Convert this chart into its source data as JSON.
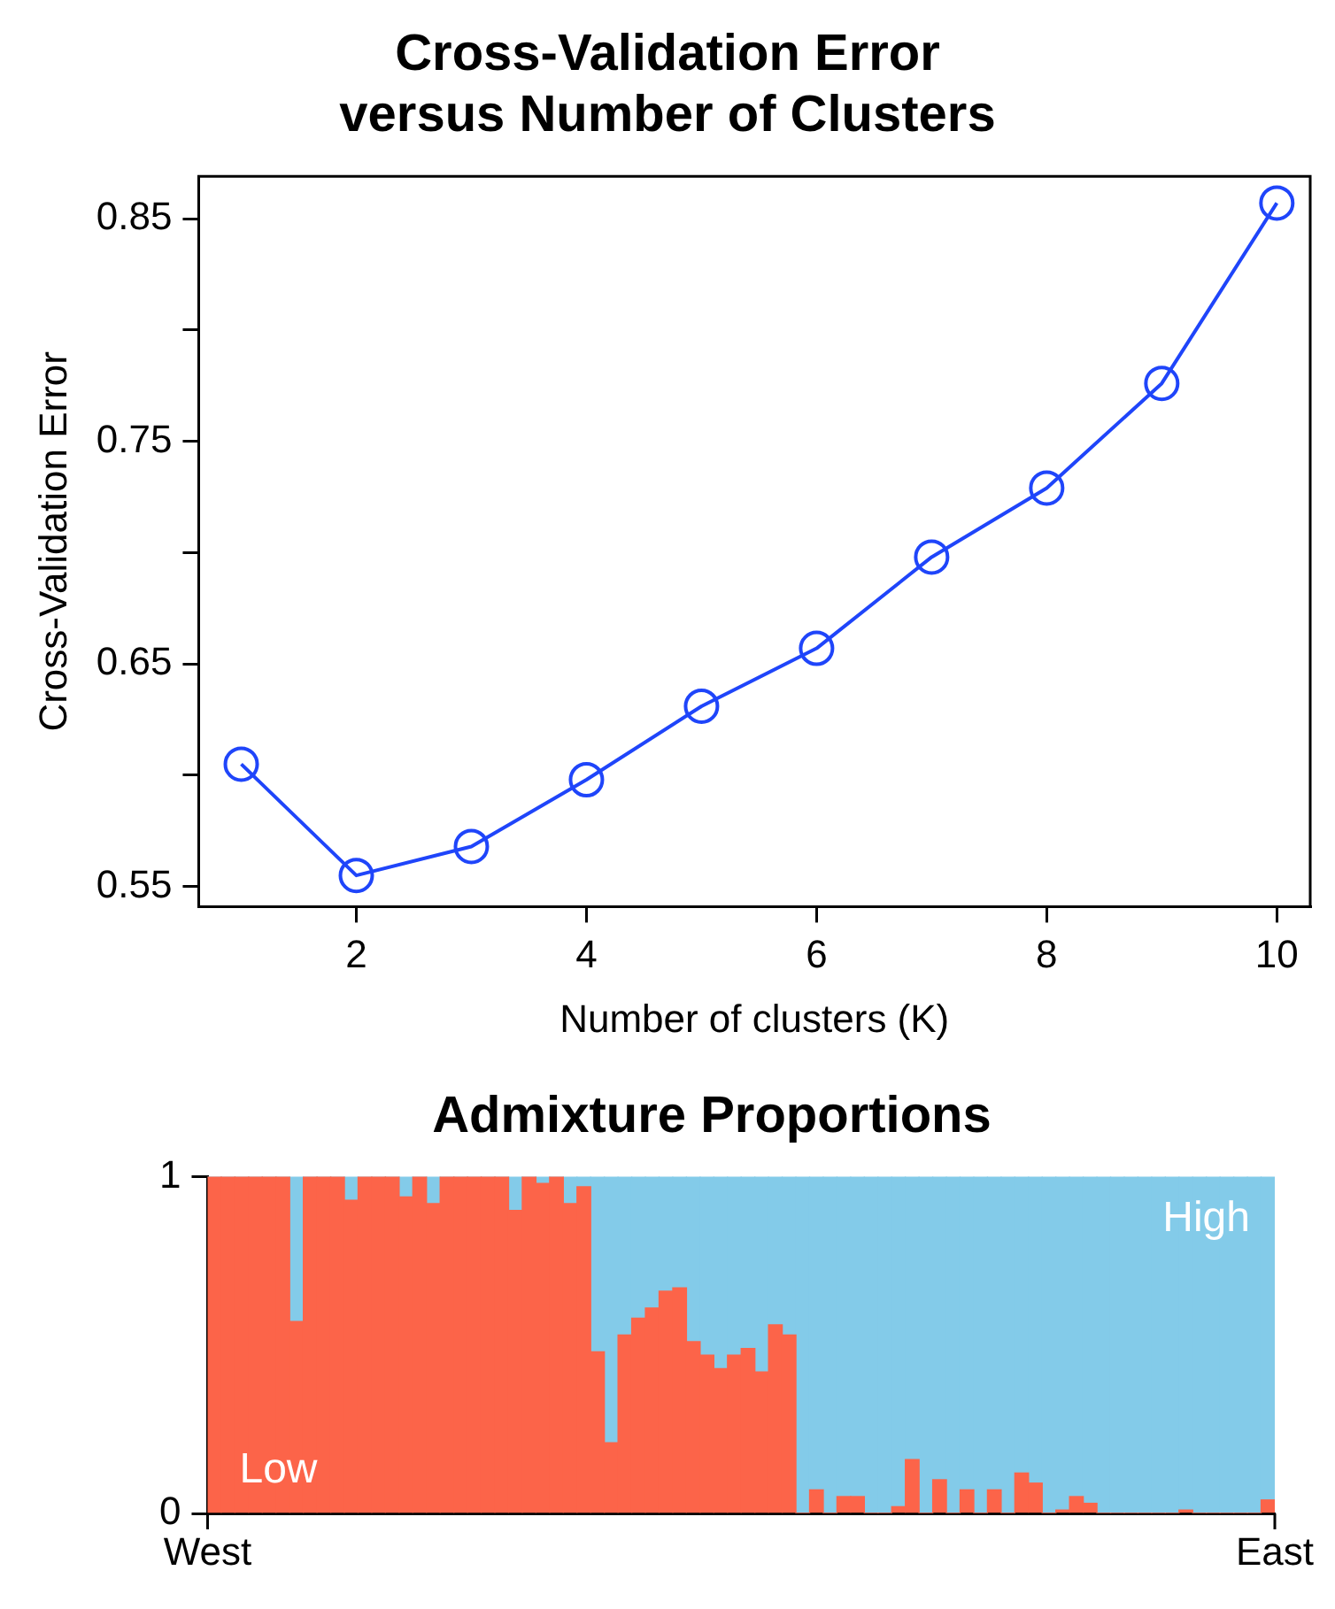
{
  "chart_data": [
    {
      "type": "line",
      "title": "Cross-Validation Error\nversus Number of Clusters",
      "xlabel": "Number of clusters (K)",
      "ylabel": "Cross-Validation Error",
      "x": [
        1,
        2,
        3,
        4,
        5,
        6,
        7,
        8,
        9,
        10
      ],
      "series": [
        {
          "color": "#1f45fa",
          "values": [
            0.605,
            0.555,
            0.568,
            0.598,
            0.631,
            0.657,
            0.698,
            0.729,
            0.776,
            0.857
          ]
        }
      ],
      "xlim": [
        0.63,
        10.29
      ],
      "xticks": [
        2,
        4,
        6,
        8,
        10
      ],
      "ylim": [
        0.541,
        0.869
      ],
      "yticks": [
        0.55,
        {
          "value": 0.6,
          "label": null
        },
        0.65,
        {
          "value": 0.7,
          "label": null
        },
        0.75,
        {
          "value": 0.8,
          "label": null
        },
        0.85
      ],
      "marker": "circle",
      "line_style": "solid",
      "legend": false,
      "grid": false
    },
    {
      "type": "bar",
      "title": "Admixture Proportions",
      "stacked": true,
      "categories": [
        null,
        null,
        null,
        null,
        null,
        null,
        null,
        null,
        null,
        null,
        null,
        null,
        null,
        null,
        null,
        null,
        null,
        null,
        null,
        null,
        null,
        null,
        null,
        null,
        null,
        null,
        null,
        null,
        null,
        null,
        null,
        null,
        null,
        null,
        null,
        null,
        null,
        null,
        null,
        null,
        null,
        null,
        null,
        null,
        null,
        null,
        null,
        null,
        null,
        null,
        null,
        null,
        null,
        null,
        null,
        null,
        null,
        null,
        null,
        null,
        null,
        null,
        null,
        null,
        null,
        null,
        null,
        null,
        null,
        null,
        null,
        null,
        null,
        null,
        null,
        null,
        null,
        null
      ],
      "series": [
        {
          "name": "Low",
          "color": "#fc6449",
          "values": [
            1,
            1,
            1,
            1,
            1,
            1,
            0.57,
            1,
            1,
            1,
            0.93,
            1,
            1,
            1,
            0.94,
            1,
            0.92,
            1,
            1,
            1,
            1,
            1,
            0.9,
            1,
            0.98,
            1,
            0.92,
            0.97,
            0.48,
            0.21,
            0.53,
            0.58,
            0.61,
            0.66,
            0.67,
            0.51,
            0.47,
            0.43,
            0.47,
            0.49,
            0.42,
            0.56,
            0.53,
            0,
            0.07,
            0,
            0.05,
            0.05,
            0,
            0,
            0.02,
            0.16,
            0,
            0.1,
            0,
            0.07,
            0,
            0.07,
            0,
            0.12,
            0.09,
            0,
            0.01,
            0.05,
            0.03,
            0,
            0,
            0,
            0,
            0,
            0,
            0.01,
            0,
            0,
            0,
            0,
            0,
            0.04
          ]
        },
        {
          "name": "High",
          "color": "#83cbe9",
          "values": [
            0,
            0,
            0,
            0,
            0,
            0,
            0.43,
            0,
            0,
            0,
            0.07,
            0,
            0,
            0,
            0.06,
            0,
            0.08,
            0,
            0,
            0,
            0,
            0,
            0.1,
            0,
            0.02,
            0,
            0.08,
            0.03,
            0.52,
            0.79,
            0.47,
            0.42,
            0.39,
            0.34,
            0.33,
            0.49,
            0.53,
            0.57,
            0.53,
            0.51,
            0.58,
            0.44,
            0.47,
            1,
            0.93,
            1,
            0.95,
            0.95,
            1,
            1,
            0.98,
            0.84,
            1,
            0.9,
            1,
            0.93,
            1,
            0.93,
            1,
            0.88,
            0.91,
            1,
            0.99,
            0.95,
            0.97,
            1,
            1,
            1,
            1,
            1,
            1,
            0.99,
            1,
            1,
            1,
            1,
            1,
            0.96
          ]
        }
      ],
      "ylim": [
        0,
        1
      ],
      "yticks": [
        0,
        1
      ],
      "legend": false,
      "grid": false,
      "annotations": [
        "West",
        "East"
      ]
    }
  ]
}
